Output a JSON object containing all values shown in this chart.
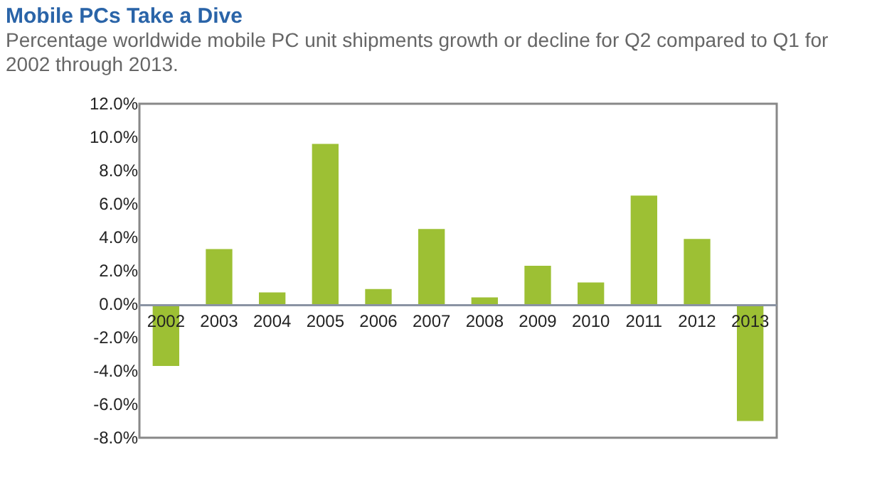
{
  "chart_data": {
    "type": "bar",
    "title": "Mobile PCs Take a Dive",
    "subtitle": "Percentage worldwide mobile PC unit shipments growth or decline for Q2 compared to Q1 for 2002 through 2013.",
    "categories": [
      "2002",
      "2003",
      "2004",
      "2005",
      "2006",
      "2007",
      "2008",
      "2009",
      "2010",
      "2011",
      "2012",
      "2013"
    ],
    "values": [
      -3.7,
      3.3,
      0.7,
      9.6,
      0.9,
      4.5,
      0.4,
      2.3,
      1.3,
      6.5,
      3.9,
      -7.0
    ],
    "color": "#9dc034",
    "ylim": [
      -8,
      12
    ],
    "yticks": [
      {
        "value": -8,
        "label": "-8.0%"
      },
      {
        "value": -6,
        "label": "-6.0%"
      },
      {
        "value": -4,
        "label": "-4.0%"
      },
      {
        "value": -2,
        "label": "-2.0%"
      },
      {
        "value": 0,
        "label": "0.0%"
      },
      {
        "value": 2,
        "label": "2.0%"
      },
      {
        "value": 4,
        "label": "4.0%"
      },
      {
        "value": 6,
        "label": "6.0%"
      },
      {
        "value": 8,
        "label": "8.0%"
      },
      {
        "value": 10,
        "label": "10.0%"
      },
      {
        "value": 12,
        "label": "12.0%"
      }
    ],
    "grid": false
  }
}
